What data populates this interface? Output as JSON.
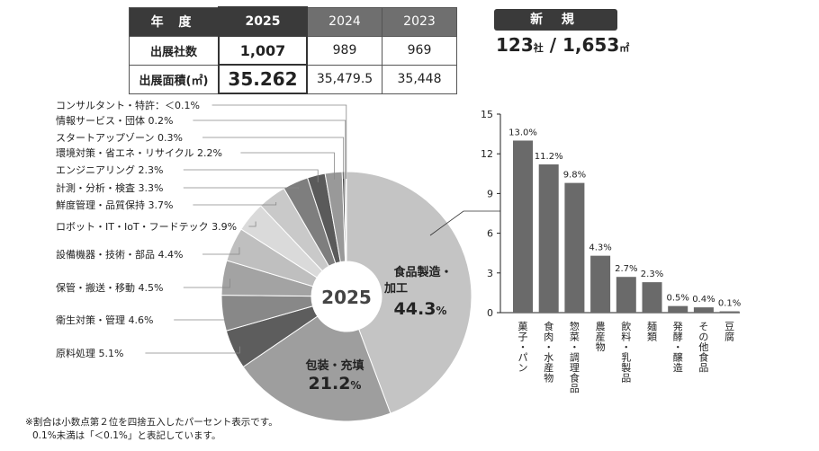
{
  "summary": {
    "header": [
      "年 度",
      "2025",
      "2024",
      "2023"
    ],
    "rows": [
      {
        "label": "出展社数",
        "values": [
          "1,007",
          "989",
          "969"
        ]
      },
      {
        "label": "出展面積(㎡)",
        "values": [
          "35.262",
          "35,479.5",
          "35,448"
        ]
      }
    ]
  },
  "new_exhibitors": {
    "label": "新 規",
    "companies": "123",
    "companies_unit": "社",
    "separator": " / ",
    "area": "1,653",
    "area_unit": "㎡"
  },
  "notes": [
    "※割合は小数点第２位を四捨五入したパーセント表示です。",
    "0.1%未満は「＜0.1%」と表記しています。"
  ],
  "chart_data": [
    {
      "type": "pie",
      "center_label": "2025",
      "slices": [
        {
          "label": "食品製造・加工",
          "value": 44.3,
          "display": "44.3",
          "color": "#c4c4c4",
          "inside": true
        },
        {
          "label": "包装・充填",
          "value": 21.2,
          "display": "21.2",
          "color": "#9e9e9e",
          "inside": true
        },
        {
          "label": "原料処理",
          "value": 5.1,
          "display": "原料処理 5.1%",
          "color": "#5d5d5d"
        },
        {
          "label": "衛生対策・管理",
          "value": 4.6,
          "display": "衛生対策・管理 4.6%",
          "color": "#888888"
        },
        {
          "label": "保管・搬送・移動",
          "value": 4.5,
          "display": "保管・搬送・移動 4.5%",
          "color": "#a3a3a3"
        },
        {
          "label": "設備機器・技術・部品",
          "value": 4.4,
          "display": "設備機器・技術・部品 4.4%",
          "color": "#bfbfbf"
        },
        {
          "label": "ロボット・IT・IoT・フードテック",
          "value": 3.9,
          "display": "ロボット・IT・IoT・フードテック 3.9%",
          "color": "#dadada"
        },
        {
          "label": "鮮度管理・品質保持",
          "value": 3.7,
          "display": "鮮度管理・品質保持 3.7%",
          "color": "#c9c9c9"
        },
        {
          "label": "計測・分析・検査",
          "value": 3.3,
          "display": "計測・分析・検査 3.3%",
          "color": "#7e7e7e"
        },
        {
          "label": "エンジニアリング",
          "value": 2.3,
          "display": "エンジニアリング 2.3%",
          "color": "#5a5a5a"
        },
        {
          "label": "環境対策・省エネ・リサイクル",
          "value": 2.2,
          "display": "環境対策・省エネ・リサイクル 2.2%",
          "color": "#999999"
        },
        {
          "label": "スタートアップゾーン",
          "value": 0.3,
          "display": "スタートアップゾーン 0.3%",
          "color": "#444444"
        },
        {
          "label": "情報サービス・団体",
          "value": 0.2,
          "display": "情報サービス・団体 0.2%",
          "color": "#666666"
        },
        {
          "label": "コンサルタント・特許",
          "value": 0.05,
          "display": "コンサルタント・特許：＜0.1%",
          "color": "#888888"
        }
      ]
    },
    {
      "type": "bar",
      "categories": [
        "菓子・パン",
        "食肉・水産物",
        "惣菜・調理食品",
        "農産物",
        "飲料・乳製品",
        "麺類",
        "発酵・醸造",
        "その他食品",
        "豆腐"
      ],
      "values": [
        13.0,
        11.2,
        9.8,
        4.3,
        2.7,
        2.3,
        0.5,
        0.4,
        0.1
      ],
      "value_labels": [
        "13.0%",
        "11.2%",
        "9.8%",
        "4.3%",
        "2.7%",
        "2.3%",
        "0.5%",
        "0.4%",
        "0.1%"
      ],
      "yticks": [
        "0",
        "3",
        "6",
        "9",
        "12",
        "15"
      ],
      "ylim": [
        0,
        15
      ],
      "color": "#6a6a6a",
      "grid": false
    }
  ]
}
